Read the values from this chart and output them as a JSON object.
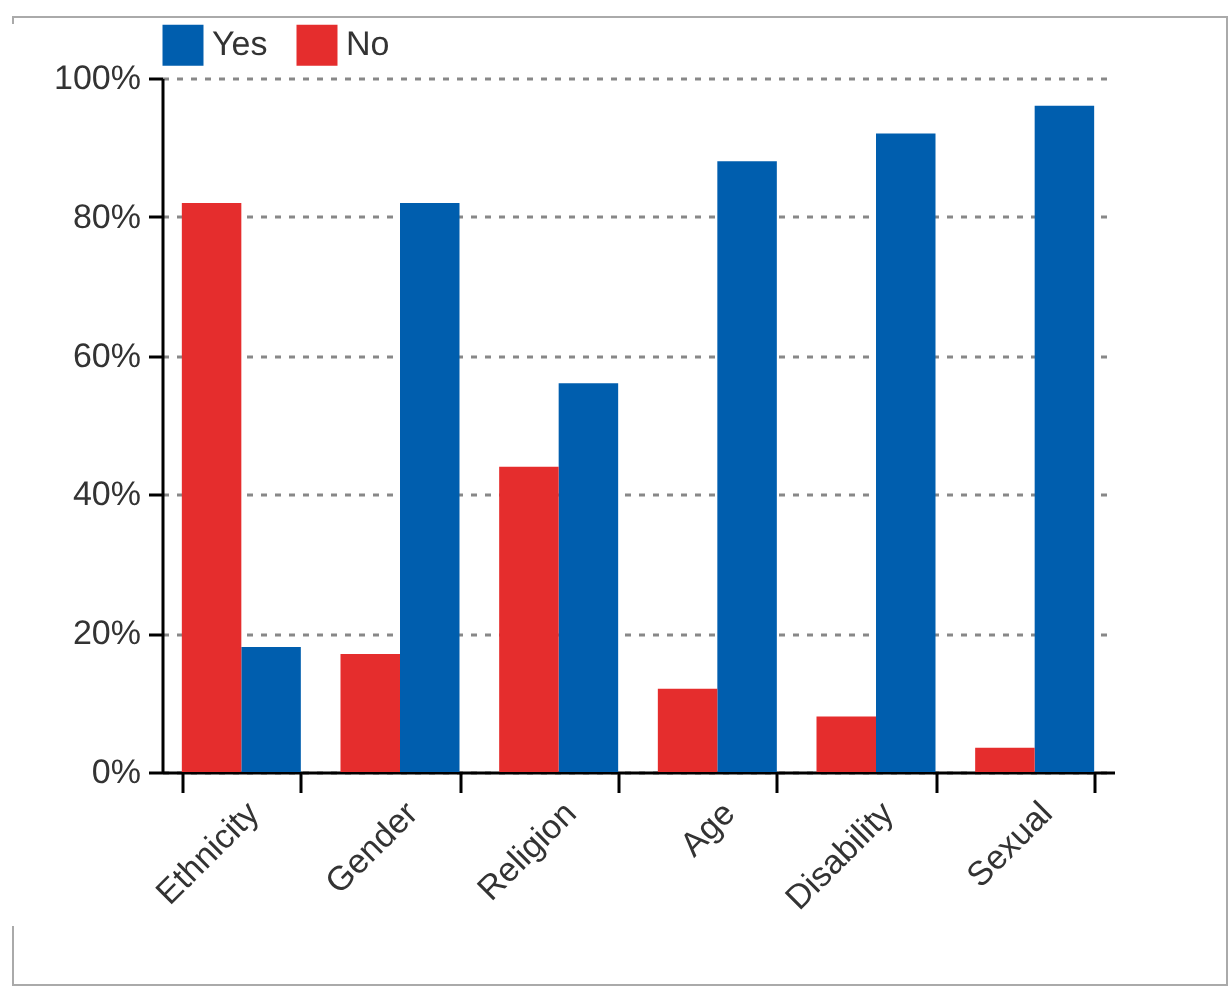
{
  "chart_data": {
    "type": "bar",
    "categories": [
      "Ethnicity",
      "Gender",
      "Religion",
      "Age",
      "Disability",
      "Sexual"
    ],
    "series": [
      {
        "name": "Yes",
        "color": "#005eae",
        "values": [
          18,
          82,
          56,
          88,
          92,
          96
        ]
      },
      {
        "name": "No",
        "color": "#e52d2d",
        "values": [
          82,
          17,
          44,
          12,
          8,
          3.5
        ]
      }
    ],
    "ylim": [
      0,
      100
    ],
    "yticks": [
      {
        "value": 0,
        "label": "0%"
      },
      {
        "value": 20,
        "label": "20%"
      },
      {
        "value": 40,
        "label": "40%"
      },
      {
        "value": 60,
        "label": "60%"
      },
      {
        "value": 80,
        "label": "80%"
      },
      {
        "value": 100,
        "label": "100%"
      }
    ],
    "grid": "y",
    "legend": "top left"
  }
}
